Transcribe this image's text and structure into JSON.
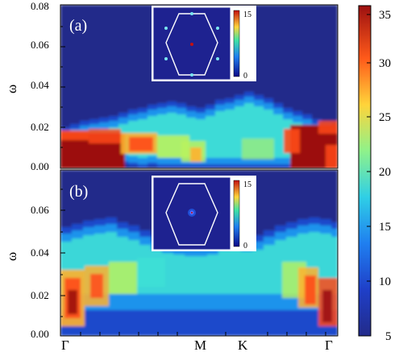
{
  "panels": [
    {
      "label": "(a)",
      "ylabel": "ω",
      "yticks": [
        "0.00",
        "0.02",
        "0.04",
        "0.06",
        "0.08"
      ],
      "inset_ticks": [
        "15",
        "0"
      ]
    },
    {
      "label": "(b)",
      "ylabel": "ω",
      "yticks": [
        "0.00",
        "0.02",
        "0.04",
        "0.06"
      ],
      "inset_ticks": [
        "15",
        "0"
      ]
    }
  ],
  "xticks": [
    "Γ",
    "M",
    "K",
    "Γ"
  ],
  "colorbar": {
    "ticks": [
      "5",
      "10",
      "15",
      "20",
      "25",
      "30",
      "35"
    ],
    "colors": [
      "#222b8a",
      "#1f4fd6",
      "#1f9bf0",
      "#3fe3d5",
      "#b9f25f",
      "#ffb12e",
      "#ff4a1a",
      "#9c1010"
    ]
  },
  "chart_data": {
    "type": "heatmap",
    "xcategories": [
      "Γ",
      "M",
      "K",
      "Γ"
    ],
    "colorbar_range": [
      5,
      35
    ],
    "panels": [
      {
        "label": "(a)",
        "ylim": [
          0,
          0.08
        ]
      },
      {
        "label": "(b)",
        "ylim": [
          0,
          0.07
        ]
      }
    ]
  }
}
